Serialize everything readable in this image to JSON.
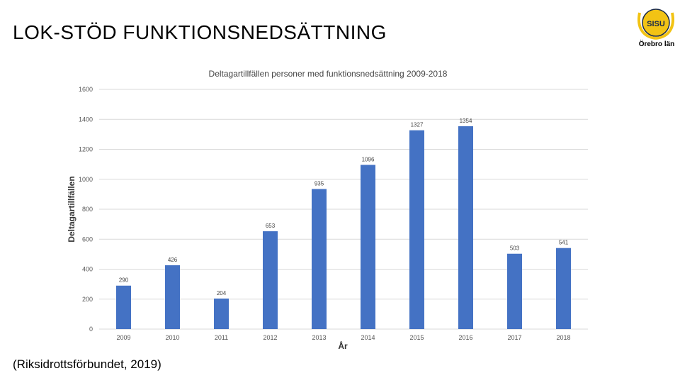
{
  "slide": {
    "title": "LOK-STÖD FUNKTIONSNEDSÄTTNING",
    "source": "(Riksidrottsförbundet, 2019)",
    "logo_text": "Örebro län",
    "logo_mark": "SISU"
  },
  "colors": {
    "bar": "#4472c4",
    "grid": "#d9d9d9",
    "logo": "#f2c314",
    "logo_dark": "#1a2a4a"
  },
  "chart_data": {
    "type": "bar",
    "title": "Deltagartillfällen personer med funktionsnedsättning 2009-2018",
    "xlabel": "År",
    "ylabel": "Deltagartillfällen",
    "categories": [
      "2009",
      "2010",
      "2011",
      "2012",
      "2013",
      "2014",
      "2015",
      "2016",
      "2017",
      "2018"
    ],
    "values": [
      290,
      426,
      204,
      653,
      935,
      1096,
      1327,
      1354,
      503,
      541
    ],
    "ylim": [
      0,
      1600
    ],
    "yticks": [
      0,
      200,
      400,
      600,
      800,
      1000,
      1200,
      1400,
      1600
    ],
    "grid": true
  }
}
